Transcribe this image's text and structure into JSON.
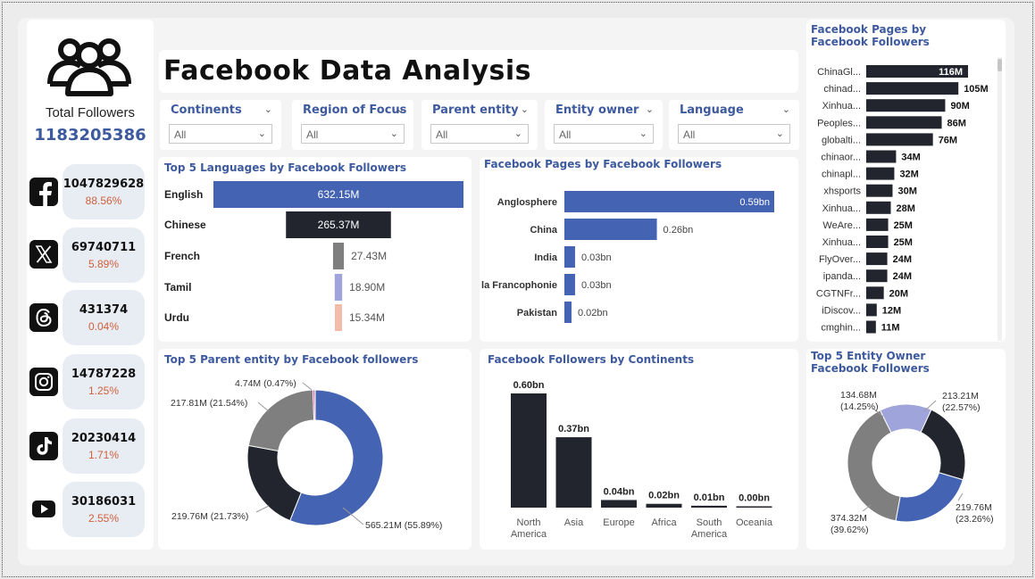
{
  "dashboard_title": "Facebook Data Analysis",
  "sidebar": {
    "total_label": "Total Followers",
    "total_value": "1183205386",
    "platforms": [
      {
        "icon": "facebook-icon",
        "value": "1047829628",
        "pct": "88.56%"
      },
      {
        "icon": "x-twitter-icon",
        "value": "69740711",
        "pct": "5.89%"
      },
      {
        "icon": "threads-icon",
        "value": "431374",
        "pct": "0.04%"
      },
      {
        "icon": "instagram-icon",
        "value": "14787228",
        "pct": "1.25%"
      },
      {
        "icon": "tiktok-icon",
        "value": "20230414",
        "pct": "1.71%"
      },
      {
        "icon": "youtube-icon",
        "value": "30186031",
        "pct": "2.55%"
      }
    ]
  },
  "slicers": [
    {
      "label": "Continents",
      "value": "All"
    },
    {
      "label": "Region of Focus",
      "value": "All"
    },
    {
      "label": "Parent entity",
      "value": "All"
    },
    {
      "label": "Entity owner",
      "value": "All"
    },
    {
      "label": "Language",
      "value": "All"
    }
  ],
  "colors": {
    "blue": "#4463b2",
    "dark": "#22252e",
    "gray": "#7f7f7f",
    "lavender": "#9fa4db",
    "peach": "#f2bca8",
    "pink": "#d63a8f",
    "title": "#3d5a9e",
    "accent_pct": "#d0603c"
  },
  "chart_data": [
    {
      "id": "languages",
      "type": "bar",
      "title": "Top 5 Languages by Facebook Followers",
      "categories": [
        "English",
        "Chinese",
        "French",
        "Tamil",
        "Urdu"
      ],
      "values": [
        632.15,
        265.37,
        27.43,
        18.9,
        15.34
      ],
      "labels": [
        "632.15M",
        "265.37M",
        "27.43M",
        "18.90M",
        "15.34M"
      ],
      "colors": [
        "#4463b2",
        "#22252e",
        "#7f7f7f",
        "#9fa4db",
        "#f2bca8"
      ]
    },
    {
      "id": "regions",
      "type": "bar",
      "title": "Facebook Pages by Facebook Followers",
      "categories": [
        "Anglosphere",
        "China",
        "India",
        "la Francophonie",
        "Pakistan"
      ],
      "values": [
        0.59,
        0.26,
        0.03,
        0.03,
        0.02
      ],
      "labels": [
        "0.59bn",
        "0.26bn",
        "0.03bn",
        "0.03bn",
        "0.02bn"
      ]
    },
    {
      "id": "pages",
      "type": "bar",
      "title": "Facebook Pages by Facebook Followers",
      "categories": [
        "ChinaGl...",
        "chinad...",
        "Xinhua...",
        "Peoples...",
        "globalti...",
        "chinaor...",
        "chinapl...",
        "xhsports",
        "Xinhua...",
        "WeAre...",
        "Xinhua...",
        "FlyOver...",
        "ipanda...",
        "CGTNFr...",
        "iDiscov...",
        "cmghin..."
      ],
      "values": [
        116,
        105,
        90,
        86,
        76,
        34,
        32,
        30,
        28,
        25,
        25,
        24,
        24,
        20,
        12,
        11
      ],
      "labels": [
        "116M",
        "105M",
        "90M",
        "86M",
        "76M",
        "34M",
        "32M",
        "30M",
        "28M",
        "25M",
        "25M",
        "24M",
        "24M",
        "20M",
        "12M",
        "11M"
      ]
    },
    {
      "id": "parent_entity",
      "type": "pie",
      "title": "Top 5 Parent entity by Facebook followers",
      "values": [
        565.21,
        219.76,
        217.81,
        4.74,
        0.5
      ],
      "labels": [
        "565.21M (55.89%)",
        "219.76M (21.73%)",
        "217.81M (21.54%)",
        "4.74M (0.47%)",
        ""
      ],
      "colors": [
        "#4463b2",
        "#22252e",
        "#7f7f7f",
        "#d63a8f",
        "#9fa4db"
      ]
    },
    {
      "id": "continents",
      "type": "bar",
      "title": "Facebook Followers by Continents",
      "categories": [
        "North America",
        "Asia",
        "Europe",
        "Africa",
        "South America",
        "Oceania"
      ],
      "values": [
        0.6,
        0.37,
        0.04,
        0.02,
        0.01,
        0.0
      ],
      "labels": [
        "0.60bn",
        "0.37bn",
        "0.04bn",
        "0.02bn",
        "0.01bn",
        "0.00bn"
      ]
    },
    {
      "id": "entity_owner",
      "type": "pie",
      "title": "Top 5 Entity Owner Facebook Followers",
      "values": [
        213.21,
        219.76,
        374.32,
        134.68
      ],
      "labels": [
        "213.21M (22.57%)",
        "219.76M (23.26%)",
        "374.32M (39.62%)",
        "134.68M (14.25%)"
      ],
      "colors": [
        "#22252e",
        "#4463b2",
        "#7f7f7f",
        "#9fa4db"
      ]
    }
  ]
}
